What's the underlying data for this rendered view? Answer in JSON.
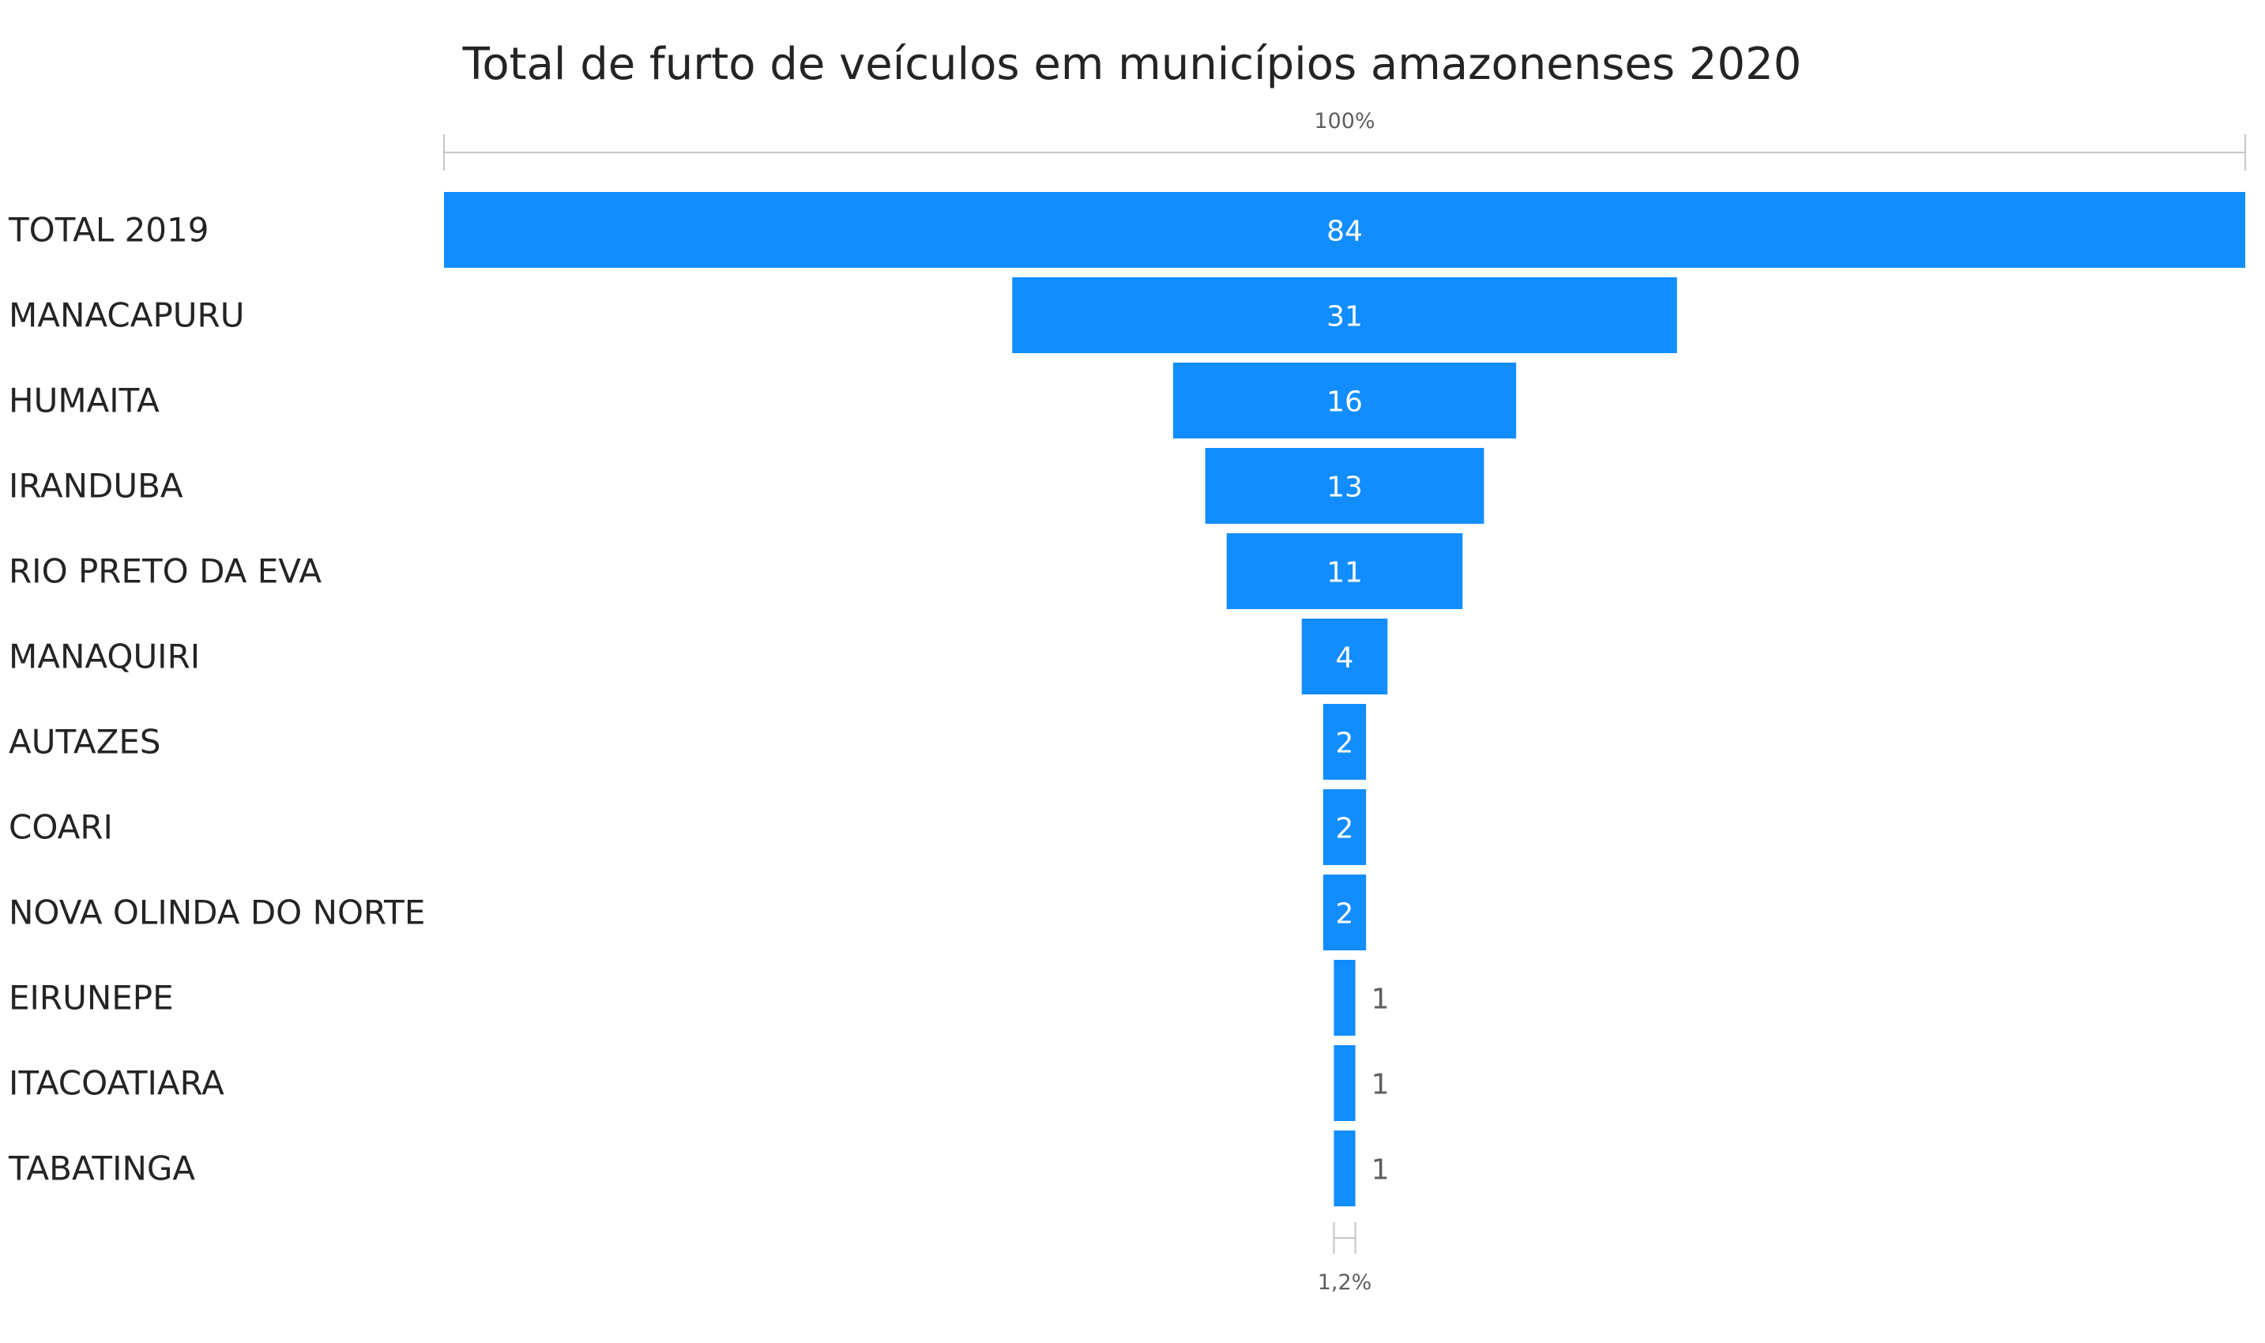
{
  "chart_data": {
    "type": "bar",
    "subtype": "funnel",
    "title": "Total de furto de veículos em municípios amazonenses 2020",
    "categories": [
      "TOTAL 2019",
      "MANACAPURU",
      "HUMAITA",
      "IRANDUBA",
      "RIO PRETO DA EVA",
      "MANAQUIRI",
      "AUTAZES",
      "COARI",
      "NOVA OLINDA DO NORTE",
      "EIRUNEPE",
      "ITACOATIARA",
      "TABATINGA"
    ],
    "values": [
      84,
      31,
      16,
      13,
      11,
      4,
      2,
      2,
      2,
      1,
      1,
      1
    ],
    "value_labels": [
      "84",
      "31",
      "16",
      "13",
      "11",
      "4",
      "2",
      "2",
      "2",
      "1",
      "1",
      "1"
    ],
    "top_percent_label": "100%",
    "bottom_percent_label": "1,2%",
    "bar_color": "#118dff",
    "axis_line_color": "#c8c6c4"
  }
}
